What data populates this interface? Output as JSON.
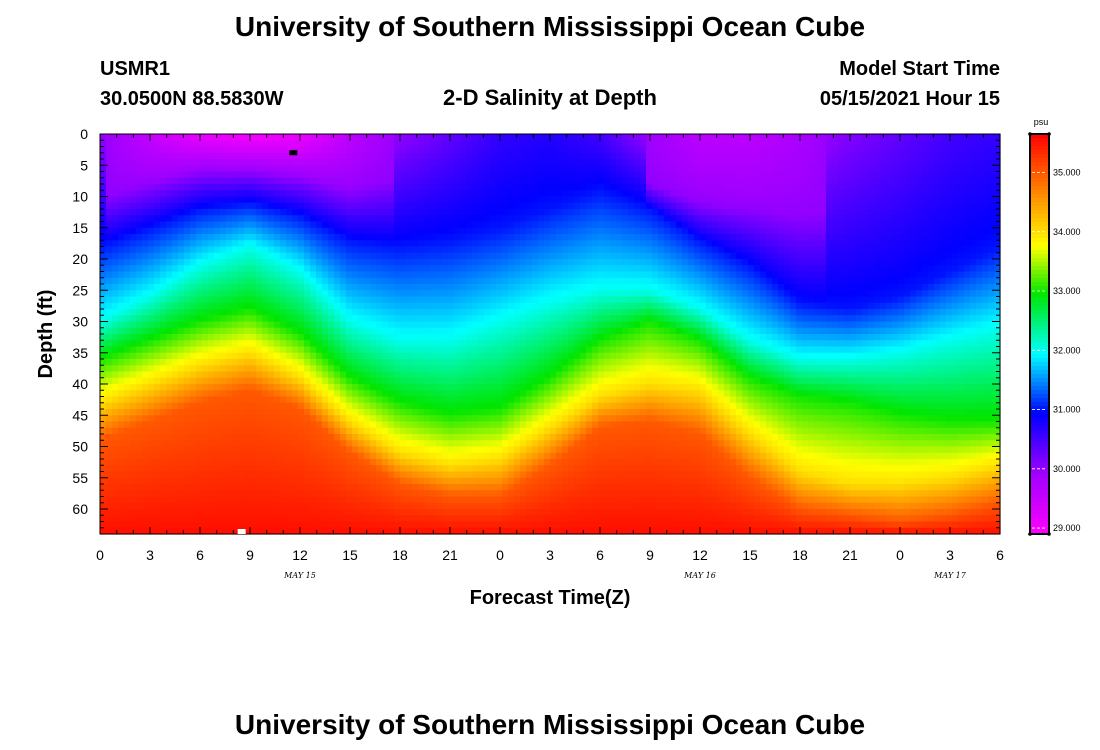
{
  "header": {
    "title": "University of Southern Mississippi Ocean Cube",
    "station": "USMR1",
    "location": "30.0500N  88.5830W",
    "product": "2-D Salinity at Depth",
    "start_label": "Model Start Time",
    "start_value": "05/15/2021 Hour 15",
    "footer_title": "University of Southern Mississippi Ocean Cube"
  },
  "chart_data": {
    "type": "heatmap",
    "title": "2-D Salinity at Depth",
    "xlabel": "Forecast Time(Z)",
    "ylabel": "Depth (ft)",
    "x_range_hours": [
      0,
      54
    ],
    "x_tick_labels": [
      "0",
      "3",
      "6",
      "9",
      "12",
      "15",
      "18",
      "21",
      "0",
      "3",
      "6",
      "9",
      "12",
      "15",
      "18",
      "21",
      "0",
      "3",
      "6"
    ],
    "date_labels": [
      {
        "hour": 12,
        "text": "MAY 15"
      },
      {
        "hour": 36,
        "text": "MAY 16"
      },
      {
        "hour": 51,
        "text": "MAY 17"
      }
    ],
    "y_range_ft": [
      0,
      64
    ],
    "y_tick_labels": [
      "0",
      "5",
      "10",
      "15",
      "20",
      "25",
      "30",
      "35",
      "40",
      "45",
      "50",
      "55",
      "60"
    ],
    "colorbar": {
      "unit": "psu",
      "min": 28.9,
      "max": 35.65,
      "ticks": [
        "35.000",
        "34.000",
        "33.000",
        "32.000",
        "31.000",
        "30.000",
        "29.000"
      ],
      "tick_values": [
        35,
        34,
        33,
        32,
        31,
        30,
        29
      ]
    },
    "surface_profile": {
      "hours": [
        0,
        3,
        6,
        9,
        12,
        15,
        18,
        21,
        24,
        27,
        30,
        33,
        36,
        39,
        42,
        45,
        48,
        51,
        54
      ],
      "psu_0ft": [
        30.0,
        29.5,
        29.1,
        28.95,
        29.05,
        29.6,
        30.0,
        30.3,
        30.6,
        30.7,
        30.5,
        29.9,
        29.6,
        29.6,
        29.8,
        30.1,
        30.3,
        30.5,
        30.6
      ]
    },
    "isohaline_depths_ft": {
      "hours": [
        0,
        3,
        6,
        9,
        12,
        15,
        18,
        21,
        24,
        27,
        30,
        33,
        36,
        39,
        42,
        45,
        48,
        51,
        54
      ],
      "s30": [
        10,
        8,
        6,
        6,
        7,
        9,
        7,
        5,
        4,
        4,
        4,
        8,
        11,
        12,
        13,
        12,
        11,
        9,
        8
      ],
      "s31": [
        18,
        15,
        12,
        11,
        13,
        17,
        18,
        17,
        15,
        12,
        9,
        12,
        17,
        21,
        27,
        28,
        26,
        22,
        18
      ],
      "s32": [
        30,
        26,
        21,
        18,
        22,
        30,
        33,
        33,
        30,
        27,
        25,
        25,
        28,
        33,
        36,
        36,
        35,
        33,
        31
      ],
      "s33": [
        36,
        33,
        30,
        28,
        32,
        39,
        43,
        45,
        44,
        39,
        33,
        30,
        33,
        39,
        42,
        43,
        45,
        46,
        46
      ],
      "s34": [
        43,
        40,
        37,
        35,
        39,
        46,
        51,
        53,
        52,
        47,
        42,
        40,
        41,
        48,
        54,
        56,
        56,
        55,
        53
      ],
      "s35": [
        49,
        46,
        43,
        41,
        44,
        51,
        56,
        58,
        58,
        53,
        47,
        46,
        48,
        55,
        60,
        61,
        62,
        61,
        59
      ]
    },
    "markers": [
      {
        "hour": 11.6,
        "depth_ft": 3.0,
        "color": "#000000"
      },
      {
        "hour": 8.5,
        "depth_ft": 63.6,
        "color": "#ffffff"
      }
    ]
  }
}
